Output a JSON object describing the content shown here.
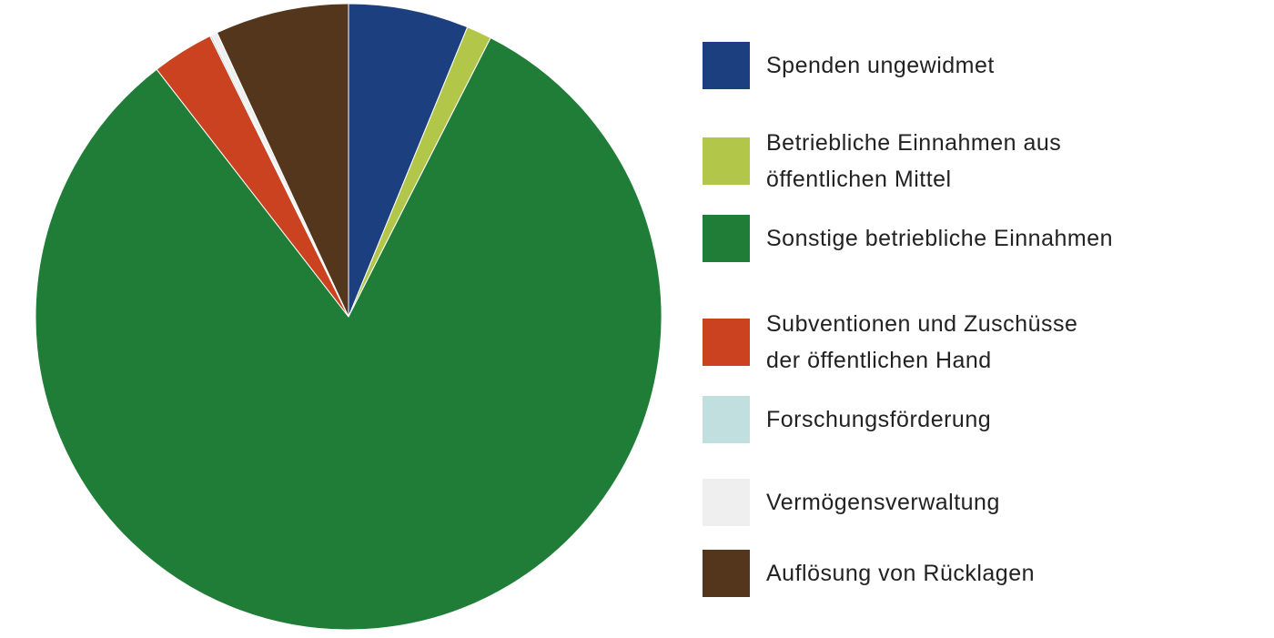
{
  "chart_data": {
    "type": "pie",
    "title": "",
    "slices": [
      {
        "label": "Spenden ungewidmet",
        "value": 6.2,
        "color": "#1b3f7f"
      },
      {
        "label": "Betriebliche Einnahmen aus\nöffentlichen Mittel",
        "value": 1.3,
        "color": "#b2c74a"
      },
      {
        "label": "Sonstige betriebliche Einnahmen",
        "value": 82.0,
        "color": "#1f7d37"
      },
      {
        "label": "Subventionen und Zuschüsse\nder öffentlichen Hand",
        "value": 3.2,
        "color": "#cb4220"
      },
      {
        "label": " Forschungsförderung",
        "value": 0.1,
        "color": "#c2dfdf"
      },
      {
        "label": "Vermögensverwaltung",
        "value": 0.3,
        "color": "#efefef"
      },
      {
        "label": "Auflösung von Rücklagen",
        "value": 6.9,
        "color": "#53361b"
      }
    ],
    "legend_placement": "right"
  }
}
